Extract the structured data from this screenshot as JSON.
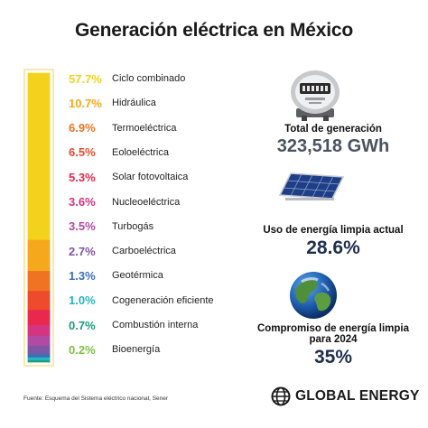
{
  "title": "Generación eléctrica en México",
  "chart_data": {
    "type": "bar",
    "title": "Generación eléctrica en México",
    "unit": "%",
    "categories": [
      "Ciclo combinado",
      "Hidráulica",
      "Termoeléctrica",
      "Eoloeléctrica",
      "Solar fotovoltaica",
      "Nucleoeléctrica",
      "Turbogás",
      "Carboeléctrica",
      "Geotérmica",
      "Cogeneración eficiente",
      "Combustión interna",
      "Bioenergía"
    ],
    "values": [
      57.7,
      10.7,
      6.9,
      6.5,
      5.3,
      3.6,
      3.5,
      2.7,
      1.3,
      1.0,
      0.7,
      0.2
    ],
    "labels": [
      "57.7%",
      "10.7%",
      "6.9%",
      "6.5%",
      "5.3%",
      "3.6%",
      "3.5%",
      "2.7%",
      "1.3%",
      "1.0%",
      "0.7%",
      "0.2%"
    ],
    "colors": [
      "#f3d21d",
      "#f6a81d",
      "#ef7323",
      "#ee4a2c",
      "#e8294d",
      "#d43480",
      "#b249a3",
      "#7d56a6",
      "#3d6fb4",
      "#26b5c2",
      "#1a9b7c",
      "#7cc142"
    ]
  },
  "stats": {
    "total_label": "Total de generación",
    "total_value": "323,518 GWh",
    "clean_label": "Uso de energía limpia actual",
    "clean_value": "28.6%",
    "goal_label": "Compromiso de energía limpia para 2024",
    "goal_value": "35%"
  },
  "icons": {
    "meter": "electric-meter-icon",
    "panel": "solar-panel-icon",
    "globe": "earth-globe-icon",
    "brand": "globe-logo-icon"
  },
  "source": "Fuente: Esquema del Sistema eléctrico nacional, Sener",
  "brand": "GLOBAL ENERGY"
}
